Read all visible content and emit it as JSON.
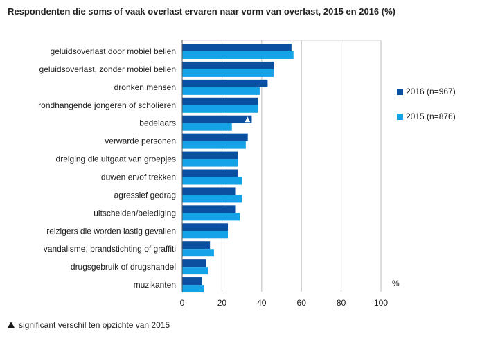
{
  "title": "Respondenten die soms of vaak overlast ervaren naar vorm van overlast, 2015 en 2016 (%)",
  "unit_label": "%",
  "footnote": {
    "marker_icon": "triangle-icon",
    "text": "significant verschil ten opzichte van 2015"
  },
  "legend": [
    {
      "label": "2016 (n=967)",
      "color": "#0b4fa0"
    },
    {
      "label": "2015 (n=876)",
      "color": "#13a3e6"
    }
  ],
  "chart_data": {
    "type": "bar",
    "orientation": "horizontal",
    "title": "Respondenten die soms of vaak overlast ervaren naar vorm van overlast, 2015 en 2016 (%)",
    "xlabel": "%",
    "ylabel": "",
    "xlim": [
      0,
      100
    ],
    "xticks": [
      0,
      20,
      40,
      60,
      80,
      100
    ],
    "grid": true,
    "legend_position": "right",
    "categories": [
      "geluidsoverlast door mobiel bellen",
      "geluidsoverlast, zonder mobiel bellen",
      "dronken mensen",
      "rondhangende jongeren of scholieren",
      "bedelaars",
      "verwarde personen",
      "dreiging die uitgaat van groepjes",
      "duwen en/of trekken",
      "agressief gedrag",
      "uitschelden/belediging",
      "reizigers die worden lastig gevallen",
      "vandalisme, brandstichting of graffiti",
      "drugsgebruik of drugshandel",
      "muzikanten"
    ],
    "series": [
      {
        "name": "2016 (n=967)",
        "color": "#0b4fa0",
        "values": [
          55,
          46,
          43,
          38,
          35,
          33,
          28,
          28,
          27,
          27,
          23,
          14,
          12,
          10
        ]
      },
      {
        "name": "2015 (n=876)",
        "color": "#13a3e6",
        "values": [
          56,
          46,
          39,
          38,
          25,
          32,
          28,
          30,
          30,
          29,
          23,
          16,
          13,
          11
        ]
      }
    ],
    "significant_categories": [
      "bedelaars"
    ]
  }
}
